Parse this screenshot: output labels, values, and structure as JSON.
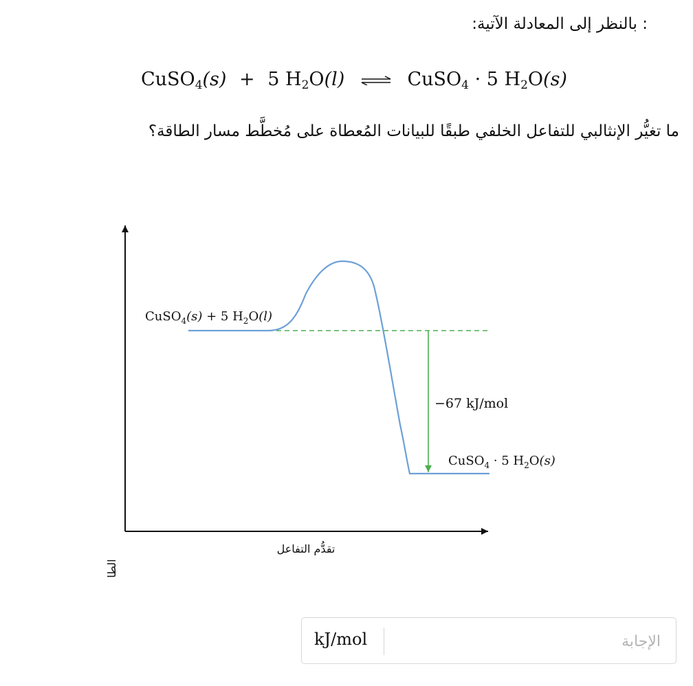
{
  "intro_text": ": بالنظر إلى المعادلة الآتية:",
  "equation": {
    "left_formula": "CuSO",
    "left_sub": "4",
    "left_state": "(s)",
    "plus": "+",
    "coef": "5",
    "water_h": "H",
    "water_sub": "2",
    "water_o": "O",
    "water_state": "(l)",
    "right_formula": "CuSO",
    "right_sub": "4",
    "dot": "·",
    "right_coef": "5",
    "right_water_h": "H",
    "right_water_sub": "2",
    "right_water_o": "O",
    "right_state": "(s)"
  },
  "question_text": "ما تغيُّر الإنثالبي للتفاعل الخلفي طبقًا للبيانات المُعطاة على مُخطَّط مسار الطاقة؟",
  "chart_data": {
    "type": "energy-profile",
    "xlabel": "تقدُّم التفاعل",
    "ylabel": "الطاقة",
    "reactants_label": "CuSO4(s) + 5 H2O(l)",
    "products_label": "CuSO4 · 5 H2O(s)",
    "enthalpy_change": -67,
    "enthalpy_label": "−67 kJ/mol",
    "unit": "kJ/mol",
    "colors": {
      "curve": "#6ca0d8",
      "reference_line": "#4caf50",
      "arrow": "#4caf50",
      "axes": "#111111"
    }
  },
  "answer": {
    "placeholder": "الإجابة",
    "value": "",
    "unit": "kJ/mol"
  }
}
